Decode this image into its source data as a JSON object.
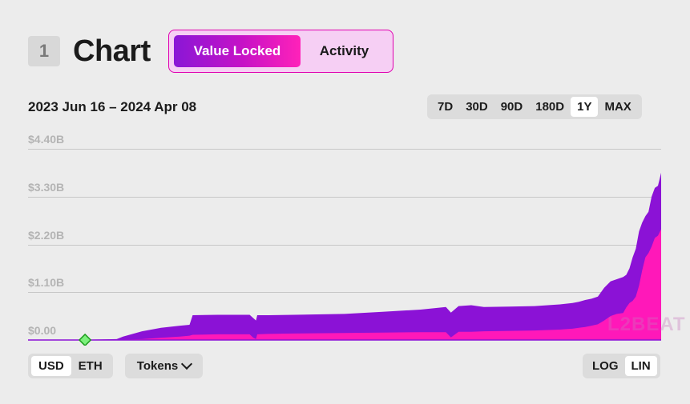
{
  "header": {
    "section_number": "1",
    "title": "Chart",
    "modes": [
      {
        "label": "Value Locked",
        "active": true
      },
      {
        "label": "Activity",
        "active": false
      }
    ]
  },
  "date_range": "2023 Jun 16 – 2024 Apr 08",
  "time_ranges": [
    {
      "label": "7D",
      "active": false
    },
    {
      "label": "30D",
      "active": false
    },
    {
      "label": "90D",
      "active": false
    },
    {
      "label": "180D",
      "active": false
    },
    {
      "label": "1Y",
      "active": true
    },
    {
      "label": "MAX",
      "active": false
    }
  ],
  "currency": [
    {
      "label": "USD",
      "active": true
    },
    {
      "label": "ETH",
      "active": false
    }
  ],
  "tokens_label": "Tokens",
  "scale": [
    {
      "label": "LOG",
      "active": false
    },
    {
      "label": "LIN",
      "active": true
    }
  ],
  "watermark": "L2BEAT",
  "colors": {
    "total_area": "#8b12d6",
    "inner_area": "#ff18b9",
    "marker": "#3bd63b"
  },
  "chart_data": {
    "type": "area",
    "title": "",
    "xlabel": "",
    "ylabel": "",
    "ylim": [
      0,
      4.4
    ],
    "y_unit": "B USD",
    "y_ticks": [
      "$0.00",
      "$1.10B",
      "$2.20B",
      "$3.30B",
      "$4.40B"
    ],
    "y_tick_values": [
      0,
      1.1,
      2.2,
      3.3,
      4.4
    ],
    "x_range": [
      "2023 Jun 16",
      "2024 Apr 08"
    ],
    "grid": true,
    "legend": "none",
    "x": [
      0,
      0.07,
      0.14,
      0.15,
      0.18,
      0.21,
      0.24,
      0.255,
      0.26,
      0.3,
      0.35,
      0.356,
      0.36,
      0.362,
      0.38,
      0.42,
      0.5,
      0.56,
      0.62,
      0.66,
      0.668,
      0.68,
      0.7,
      0.72,
      0.76,
      0.8,
      0.84,
      0.86,
      0.87,
      0.88,
      0.89,
      0.9,
      0.91,
      0.92,
      0.93,
      0.94,
      0.945,
      0.95,
      0.955,
      0.96,
      0.965,
      0.97,
      0.975,
      0.98,
      0.985,
      0.99,
      0.995,
      1.0
    ],
    "series": [
      {
        "name": "",
        "values": [
          0,
          0,
          0.02,
          0.08,
          0.2,
          0.28,
          0.33,
          0.35,
          0.57,
          0.58,
          0.58,
          0.5,
          0.45,
          0.57,
          0.57,
          0.58,
          0.6,
          0.65,
          0.7,
          0.76,
          0.63,
          0.78,
          0.8,
          0.76,
          0.77,
          0.78,
          0.82,
          0.85,
          0.88,
          0.92,
          0.95,
          1.0,
          1.2,
          1.35,
          1.4,
          1.45,
          1.5,
          1.65,
          1.9,
          2.1,
          2.5,
          2.7,
          2.85,
          2.95,
          3.3,
          3.5,
          3.55,
          3.85
        ]
      },
      {
        "name": "",
        "values": [
          0,
          0,
          0,
          0.01,
          0.02,
          0.05,
          0.08,
          0.1,
          0.12,
          0.13,
          0.13,
          0.05,
          0.02,
          0.13,
          0.14,
          0.15,
          0.16,
          0.17,
          0.18,
          0.18,
          0.06,
          0.19,
          0.19,
          0.2,
          0.21,
          0.22,
          0.24,
          0.26,
          0.28,
          0.3,
          0.33,
          0.36,
          0.45,
          0.55,
          0.6,
          0.62,
          0.75,
          0.85,
          0.9,
          1.0,
          1.25,
          1.6,
          1.9,
          2.0,
          2.15,
          2.35,
          2.4,
          2.55
        ]
      }
    ],
    "marker": {
      "x": 0.09,
      "y": 0
    }
  }
}
